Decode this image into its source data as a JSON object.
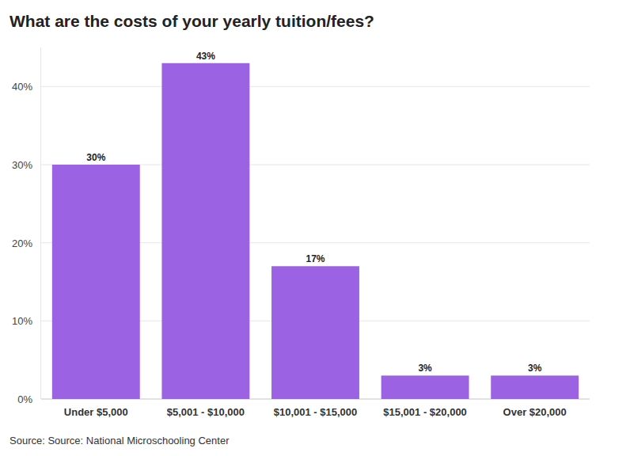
{
  "chart_data": {
    "type": "bar",
    "title": "What are the costs of your yearly tuition/fees?",
    "source": "Source: Source: National Microschooling Center",
    "categories": [
      "Under $5,000",
      "$5,001 - $10,000",
      "$10,001 - $15,000",
      "$15,001 - $20,000",
      "Over $20,000"
    ],
    "values": [
      30,
      43,
      17,
      3,
      3
    ],
    "value_labels": [
      "30%",
      "43%",
      "17%",
      "3%",
      "3%"
    ],
    "data_labels": true,
    "color": "#9b62e3",
    "ylim": [
      0,
      45
    ],
    "yticks": [
      {
        "value": 0,
        "label": "0%"
      },
      {
        "value": 10,
        "label": "10%"
      },
      {
        "value": 20,
        "label": "20%"
      },
      {
        "value": 30,
        "label": "30%"
      },
      {
        "value": 40,
        "label": "40%"
      }
    ],
    "grid": true
  }
}
